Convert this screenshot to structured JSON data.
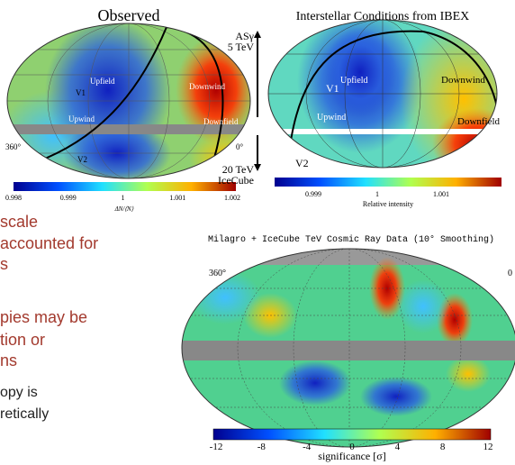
{
  "left_map": {
    "title": "Observed",
    "region_labels": [
      "Upfield",
      "V1",
      "Upwind",
      "V2",
      "Downwind",
      "Downfield"
    ],
    "longitude_labels": [
      "360°",
      "0°"
    ],
    "colorbar": {
      "ticks": [
        "0.998",
        "0.999",
        "1",
        "1.001",
        "1.002"
      ],
      "label": "ΔN/⟨N⟩"
    }
  },
  "energy_labels": [
    "ASγ",
    "5 TeV",
    "20 TeV",
    "IceCube"
  ],
  "right_map": {
    "title": "Interstellar Conditions from IBEX",
    "region_labels": [
      "Upfield",
      "V1",
      "Upwind",
      "V2",
      "Downwind",
      "Downfield"
    ],
    "colorbar": {
      "ticks": [
        "0.999",
        "1",
        "1.001"
      ],
      "label": "Relative intensity"
    }
  },
  "bullets": [
    "scale",
    "accounted for",
    "s",
    "pies may be",
    "tion or",
    "ns",
    "opy is",
    "retically"
  ],
  "bottom_map": {
    "title": "Milagro + IceCube TeV Cosmic Ray Data (10° Smoothing)",
    "longitude_labels": [
      "360°",
      "0"
    ],
    "colorbar": {
      "ticks": [
        "-12",
        "-8",
        "-4",
        "0",
        "4",
        "8",
        "12"
      ],
      "label": "significance [σ]"
    }
  }
}
